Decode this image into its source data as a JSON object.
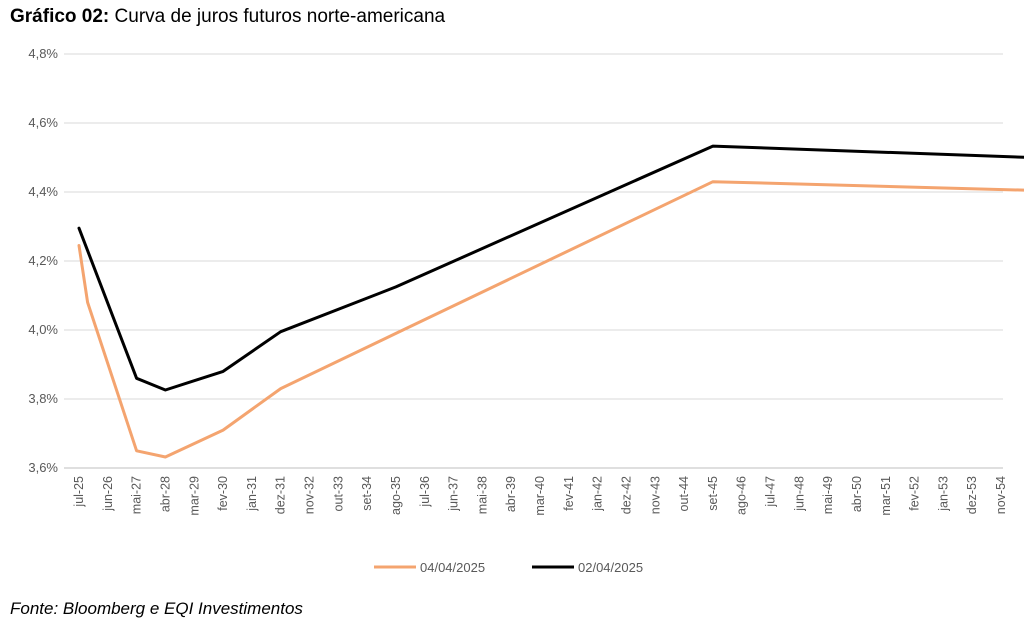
{
  "header": {
    "title_prefix": "Gráfico 02:",
    "title_text": "Curva de juros futuros norte-americana"
  },
  "footer": {
    "source": "Fonte: Bloomberg e EQI Investimentos"
  },
  "chart_data": {
    "type": "line",
    "title": "Gráfico 02: Curva de juros futuros norte-americana",
    "xlabel": "",
    "ylabel": "",
    "ylim": [
      3.6,
      4.8
    ],
    "yticks": [
      3.6,
      3.8,
      4.0,
      4.2,
      4.4,
      4.6,
      4.8
    ],
    "ytick_labels": [
      "3,6%",
      "3,8%",
      "4,0%",
      "4,2%",
      "4,4%",
      "4,6%",
      "4,8%"
    ],
    "grid": "horizontal",
    "legend_position": "bottom",
    "categories": [
      "jul-25",
      "jun-26",
      "mai-27",
      "abr-28",
      "mar-29",
      "fev-30",
      "jan-31",
      "dez-31",
      "nov-32",
      "out-33",
      "set-34",
      "ago-35",
      "jul-36",
      "jun-37",
      "mai-38",
      "abr-39",
      "mar-40",
      "fev-41",
      "jan-42",
      "dez-42",
      "nov-43",
      "out-44",
      "set-45",
      "ago-46",
      "jul-47",
      "jun-48",
      "mai-49",
      "abr-50",
      "mar-51",
      "fev-52",
      "jan-53",
      "dez-53",
      "nov-54"
    ],
    "series": [
      {
        "name": "04/04/2025",
        "color": "#F4A46F",
        "points": [
          [
            0,
            4.245
          ],
          [
            0.3,
            4.08
          ],
          [
            2,
            3.65
          ],
          [
            3,
            3.632
          ],
          [
            5,
            3.71
          ],
          [
            7,
            3.83
          ],
          [
            11,
            3.99
          ],
          [
            22,
            4.43
          ],
          [
            33,
            4.405
          ]
        ]
      },
      {
        "name": "02/04/2025",
        "color": "#000000",
        "points": [
          [
            0,
            4.295
          ],
          [
            2,
            3.86
          ],
          [
            3,
            3.826
          ],
          [
            5,
            3.88
          ],
          [
            7,
            3.995
          ],
          [
            11,
            4.125
          ],
          [
            22,
            4.533
          ],
          [
            33,
            4.5
          ]
        ]
      }
    ]
  }
}
